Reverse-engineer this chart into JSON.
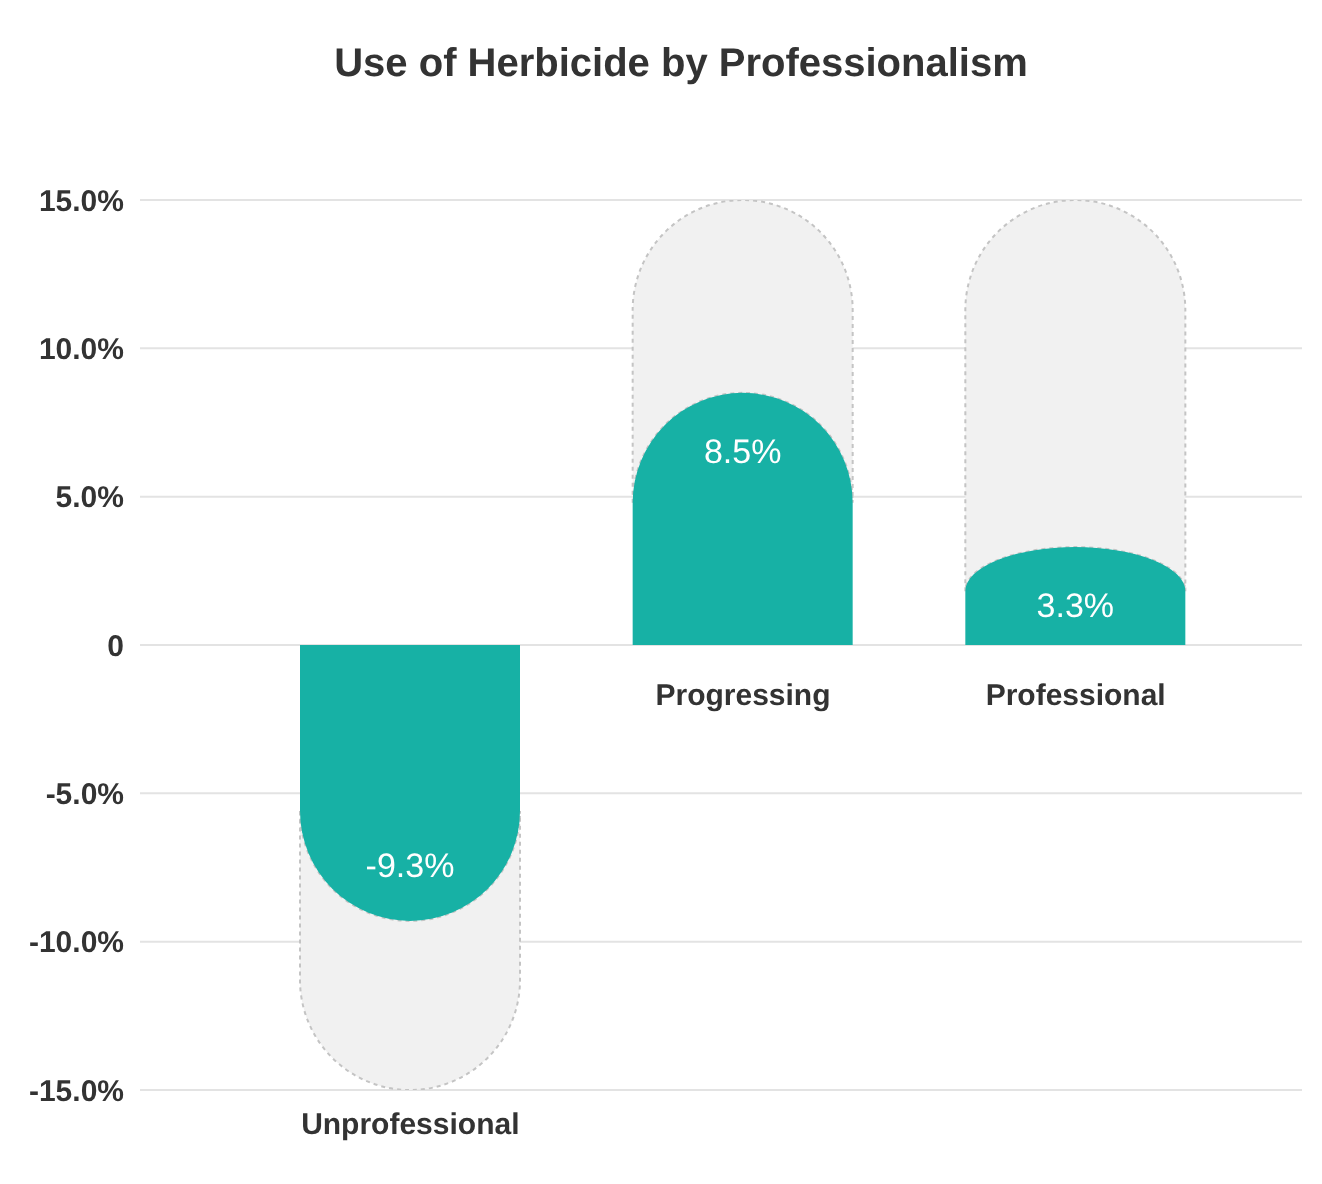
{
  "chart_data": {
    "type": "bar",
    "title": "Use of Herbicide by Professionalism",
    "categories": [
      "Unprofessional",
      "Progressing",
      "Professional"
    ],
    "values": [
      -9.3,
      8.5,
      3.3
    ],
    "value_labels": [
      "-9.3%",
      "8.5%",
      "3.3%"
    ],
    "color": "#17b1a5",
    "ylim": [
      -15,
      15
    ],
    "yticks": [
      {
        "value": -15,
        "label": "-15.0%"
      },
      {
        "value": -10,
        "label": "-10.0%"
      },
      {
        "value": -5,
        "label": "-5.0%"
      },
      0,
      {
        "value": 5,
        "label": "5.0%"
      },
      {
        "value": 10,
        "label": "10.0%"
      },
      {
        "value": 15,
        "label": "15.0%"
      }
    ],
    "grid": "y",
    "legend": false
  }
}
